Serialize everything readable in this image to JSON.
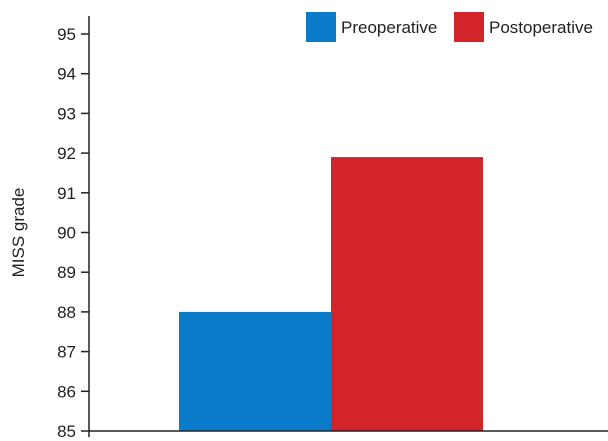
{
  "chart_data": {
    "type": "bar",
    "title": "",
    "xlabel": "",
    "ylabel": "MISS grade",
    "ylim": [
      85,
      95
    ],
    "yticks": [
      85,
      86,
      87,
      88,
      89,
      90,
      91,
      92,
      93,
      94,
      95
    ],
    "grid": false,
    "legend_position": "top-right",
    "series": [
      {
        "name": "Preoperative",
        "value": 88.0,
        "color": "#0a7bc9"
      },
      {
        "name": "Postoperative",
        "value": 91.9,
        "color": "#d3242b"
      }
    ]
  }
}
